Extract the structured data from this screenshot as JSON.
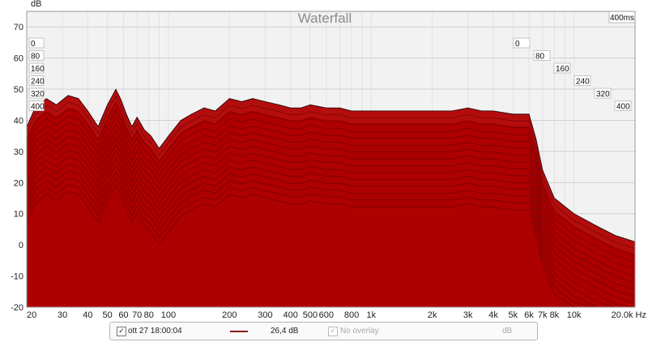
{
  "chart_data": {
    "type": "area",
    "title": "Waterfall",
    "ylabel": "dB",
    "xlabel": "Hz",
    "x_scale": "log",
    "xlim": [
      20,
      20000
    ],
    "ylim": [
      -20,
      75
    ],
    "y_ticks": [
      70,
      60,
      50,
      40,
      30,
      20,
      10,
      0,
      -10,
      -20
    ],
    "x_ticks": [
      {
        "v": 20,
        "label": "20"
      },
      {
        "v": 30,
        "label": "30"
      },
      {
        "v": 40,
        "label": "40"
      },
      {
        "v": 50,
        "label": "50"
      },
      {
        "v": 60,
        "label": "60"
      },
      {
        "v": 70,
        "label": "70"
      },
      {
        "v": 80,
        "label": "80"
      },
      {
        "v": 100,
        "label": "100"
      },
      {
        "v": 200,
        "label": "200"
      },
      {
        "v": 300,
        "label": "300"
      },
      {
        "v": 400,
        "label": "400"
      },
      {
        "v": 500,
        "label": "500"
      },
      {
        "v": 600,
        "label": "600"
      },
      {
        "v": 800,
        "label": "800"
      },
      {
        "v": 1000,
        "label": "1k"
      },
      {
        "v": 2000,
        "label": "2k"
      },
      {
        "v": 3000,
        "label": "3k"
      },
      {
        "v": 4000,
        "label": "4k"
      },
      {
        "v": 5000,
        "label": "5k"
      },
      {
        "v": 6000,
        "label": "6k"
      },
      {
        "v": 7000,
        "label": "7k"
      },
      {
        "v": 8000,
        "label": "8k"
      },
      {
        "v": 10000,
        "label": "10k"
      },
      {
        "v": 20000,
        "label": "20,0k Hz"
      }
    ],
    "time_axis_label": "400ms",
    "time_slices_ms": [
      "0",
      "80",
      "160",
      "240",
      "320",
      "400"
    ],
    "series": [
      {
        "name": "0",
        "x": [
          20,
          22,
          25,
          28,
          32,
          36,
          40,
          45,
          50,
          55,
          58,
          62,
          66,
          70,
          76,
          82,
          90,
          100,
          115,
          130,
          150,
          170,
          200,
          230,
          260,
          300,
          350,
          400,
          450,
          500,
          600,
          700,
          800,
          1000,
          1300,
          1600,
          2000,
          2500,
          3000,
          3500,
          4000,
          5000,
          6000,
          6500,
          7000,
          8000,
          10000,
          13000,
          16000,
          20000
        ],
        "values": [
          38,
          44,
          47,
          45,
          48,
          47,
          43,
          38,
          45,
          50,
          47,
          42,
          38,
          41,
          37,
          35,
          31,
          35,
          40,
          42,
          44,
          43,
          47,
          46,
          47,
          46,
          45,
          44,
          44,
          45,
          44,
          44,
          43,
          43,
          43,
          43,
          43,
          43,
          44,
          43,
          43,
          42,
          42,
          34,
          24,
          15,
          10,
          6,
          3,
          1
        ]
      },
      {
        "name": "80",
        "values_offset_db": -4
      },
      {
        "name": "160",
        "values_offset_db": -10
      },
      {
        "name": "240",
        "values_offset_db": -16
      },
      {
        "name": "320",
        "values_offset_db": -22
      },
      {
        "name": "400",
        "values_offset_db": -28
      }
    ]
  },
  "legend": {
    "date_label": "ott 27 18:00:04",
    "level_label": "26,4 dB",
    "overlay_label": "No overlay",
    "unit_label": "dB",
    "check_mark": "✓",
    "series_color": "#8b1a1a"
  },
  "colors": {
    "fill": "#b00000",
    "fill_dark": "#7a0000",
    "stroke": "#1a0000",
    "grid": "#d0d0d0",
    "grid_minor": "#e3e3e3",
    "plot_bg": "#f2f2f2"
  }
}
